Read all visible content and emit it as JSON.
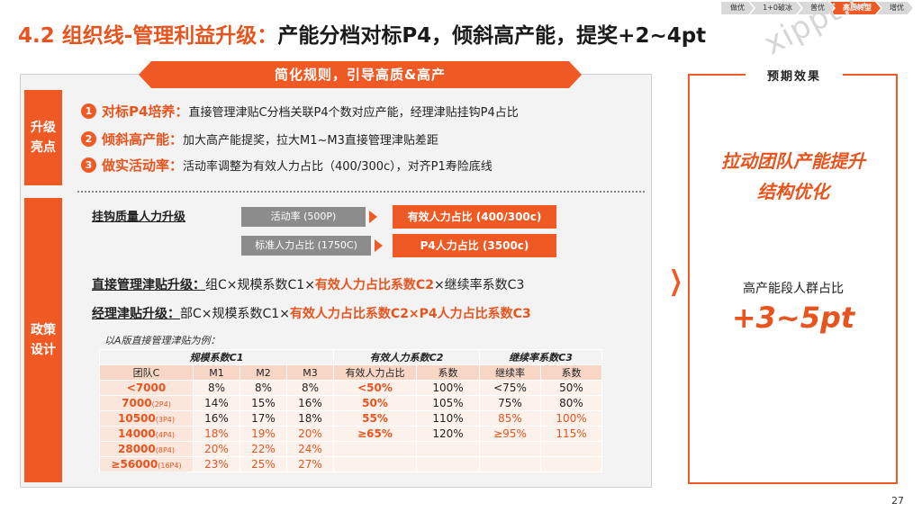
{
  "nav": [
    "做优",
    "1+0破冰",
    "普优",
    "高质转型",
    "增优"
  ],
  "title": {
    "prefix": "4.2 组织线-管理利益升级：",
    "main": "产能分档对标P4，倾斜高产能，提奖+2~4pt"
  },
  "watermark": "xippt.com",
  "banner": "简化规则，引导高质&高产",
  "highlights": {
    "label": "升级亮点",
    "items": [
      {
        "num": "1",
        "head": "对标P4培养：",
        "text": "直接管理津贴C分档关联P4个数对应产能，经理津贴挂钩P4占比"
      },
      {
        "num": "2",
        "head": "倾斜高产能：",
        "text": "加大高产能提奖，拉大M1~M3直接管理津贴差距"
      },
      {
        "num": "3",
        "head": "做实活动率：",
        "text": "活动率调整为有效人力占比（400/300c），对齐P1寿险底线"
      }
    ]
  },
  "policy": {
    "label": "政策设计",
    "quality_title": "挂钩质量人力升级",
    "map": [
      {
        "from": "活动率 (500P)",
        "to": "有效人力占比 (400/300c)"
      },
      {
        "from": "标准人力占比 (1750C)",
        "to": "P4人力占比 (3500c)"
      }
    ],
    "formula1": {
      "label": "直接管理津贴升级：",
      "a": "组C×规模系数C1×",
      "b": "有效人力占比系数C2",
      "c": "×继续率系数C3"
    },
    "formula2": {
      "label": "经理津贴升级：",
      "a": "部C×规模系数C1×",
      "b": "有效人力占比系数C2×P4人力占比系数C3"
    },
    "note": "以A版直接管理津贴为例："
  },
  "table": {
    "groups": [
      "规模系数C1",
      "有效人力系数C2",
      "继续率系数C3"
    ],
    "headers": [
      "团队C",
      "M1",
      "M2",
      "M3",
      "有效人力占比",
      "系数",
      "继续率",
      "系数"
    ],
    "rows": [
      {
        "tier": "<7000",
        "tag": "",
        "m1": "8%",
        "m2": "8%",
        "m3": "8%",
        "e": "<50%",
        "ec": "100%",
        "r": "<75%",
        "rc": "50%"
      },
      {
        "tier": "7000",
        "tag": "(2P4)",
        "m1": "14%",
        "m2": "15%",
        "m3": "16%",
        "e": "50%",
        "ec": "105%",
        "r": "75%",
        "rc": "80%"
      },
      {
        "tier": "10500",
        "tag": "(3P4)",
        "m1": "16%",
        "m2": "17%",
        "m3": "18%",
        "e": "55%",
        "ec": "110%",
        "r": "85%",
        "rc": "100%"
      },
      {
        "tier": "14000",
        "tag": "(4P4)",
        "m1": "18%",
        "m2": "19%",
        "m3": "20%",
        "e": "≥65%",
        "ec": "120%",
        "r": "≥95%",
        "rc": "115%"
      },
      {
        "tier": "28000",
        "tag": "(8P4)",
        "m1": "20%",
        "m2": "22%",
        "m3": "24%",
        "e": "",
        "ec": "",
        "r": "",
        "rc": ""
      },
      {
        "tier": "≥56000",
        "tag": "(16P4)",
        "m1": "23%",
        "m2": "25%",
        "m3": "27%",
        "e": "",
        "ec": "",
        "r": "",
        "rc": ""
      }
    ]
  },
  "effect": {
    "label": "预期效果",
    "line1": "拉动团队产能提升",
    "line2": "结构优化",
    "metric_label": "高产能段人群占比",
    "metric_value": "+3~5pt"
  },
  "page": "27",
  "colors": {
    "accent": "#ef5a24",
    "gray": "#8c8c8c"
  }
}
